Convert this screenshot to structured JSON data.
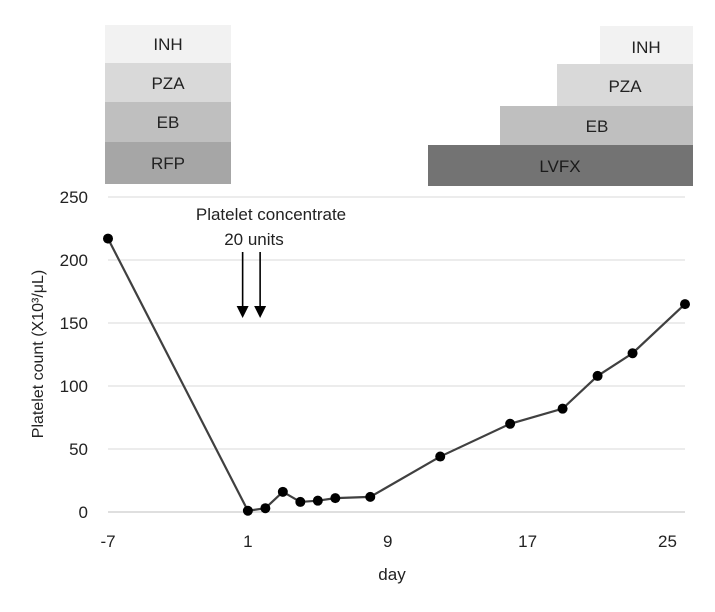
{
  "chart_data": {
    "type": "line",
    "xlabel": "day",
    "ylabel": "Platelet count  (X10³/μL)",
    "xlim": [
      -7,
      26
    ],
    "ylim": [
      0,
      250
    ],
    "x_ticks": [
      "-7",
      "1",
      "9",
      "17",
      "25"
    ],
    "y_ticks": [
      "0",
      "50",
      "100",
      "150",
      "200",
      "250"
    ],
    "grid": "horizontal",
    "colors": {
      "line": "#404040",
      "marker": "#000000",
      "grid": "#d9d9d9"
    },
    "series": [
      {
        "points": [
          {
            "x": -7,
            "y": 217
          },
          {
            "x": 1,
            "y": 1
          },
          {
            "x": 2,
            "y": 3
          },
          {
            "x": 3,
            "y": 16
          },
          {
            "x": 4,
            "y": 8
          },
          {
            "x": 5,
            "y": 9
          },
          {
            "x": 6,
            "y": 11
          },
          {
            "x": 8,
            "y": 12
          },
          {
            "x": 12,
            "y": 44
          },
          {
            "x": 16,
            "y": 70
          },
          {
            "x": 19,
            "y": 82
          },
          {
            "x": 21,
            "y": 108
          },
          {
            "x": 23,
            "y": 126
          },
          {
            "x": 26,
            "y": 165
          }
        ]
      }
    ],
    "annotation": {
      "line1": "Platelet concentrate",
      "line2": "20 units",
      "arrows_at_x": [
        0.7,
        1.7
      ]
    },
    "drug_bars": {
      "before": [
        {
          "label": "INH",
          "color": "#f2f2f2"
        },
        {
          "label": "PZA",
          "color": "#d9d9d9"
        },
        {
          "label": "EB",
          "color": "#bfbfbf"
        },
        {
          "label": "RFP",
          "color": "#a6a6a6"
        }
      ],
      "after": [
        {
          "label": "INH",
          "color": "#f2f2f2"
        },
        {
          "label": "PZA",
          "color": "#d9d9d9"
        },
        {
          "label": "EB",
          "color": "#bfbfbf"
        },
        {
          "label": "LVFX",
          "color": "#737373"
        }
      ]
    }
  }
}
